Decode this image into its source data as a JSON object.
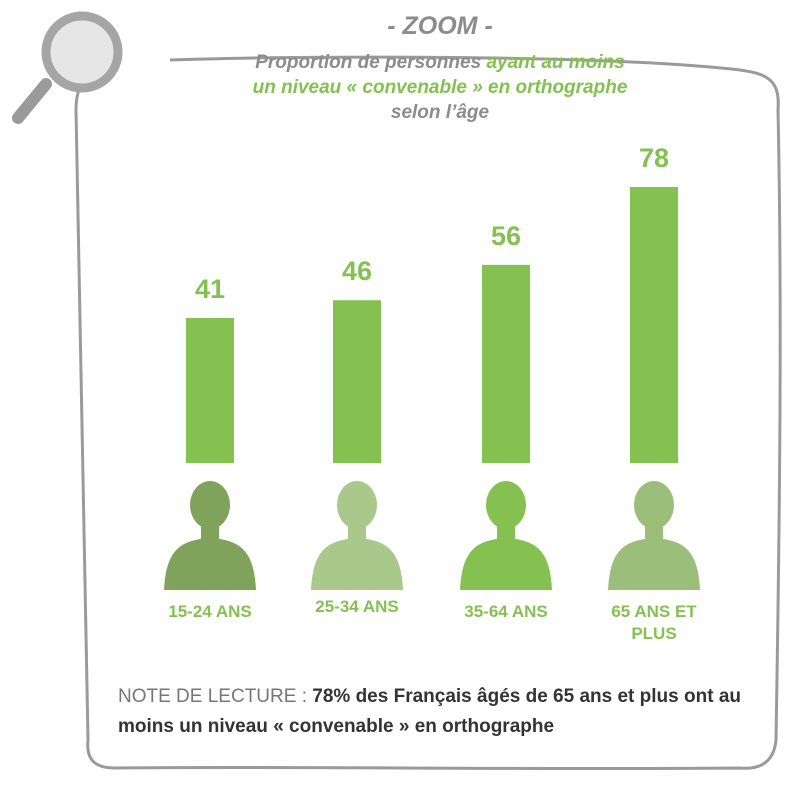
{
  "chart_data": {
    "type": "bar",
    "title": "- ZOOM -",
    "subtitle": [
      "Proportion de personnes",
      "ayant au moins un niveau « convenable » en orthographe",
      "selon l’âge"
    ],
    "categories": [
      "15-24 ANS",
      "25-34 ANS",
      "35-64 ANS",
      "65 ANS ET PLUS"
    ],
    "values": [
      41,
      46,
      56,
      78
    ],
    "color": "#84c150",
    "note_label": "NOTE DE LECTURE :",
    "note": "78% des Français âgés de 65 ans et plus ont au moins un niveau « convenable » en orthographe"
  }
}
